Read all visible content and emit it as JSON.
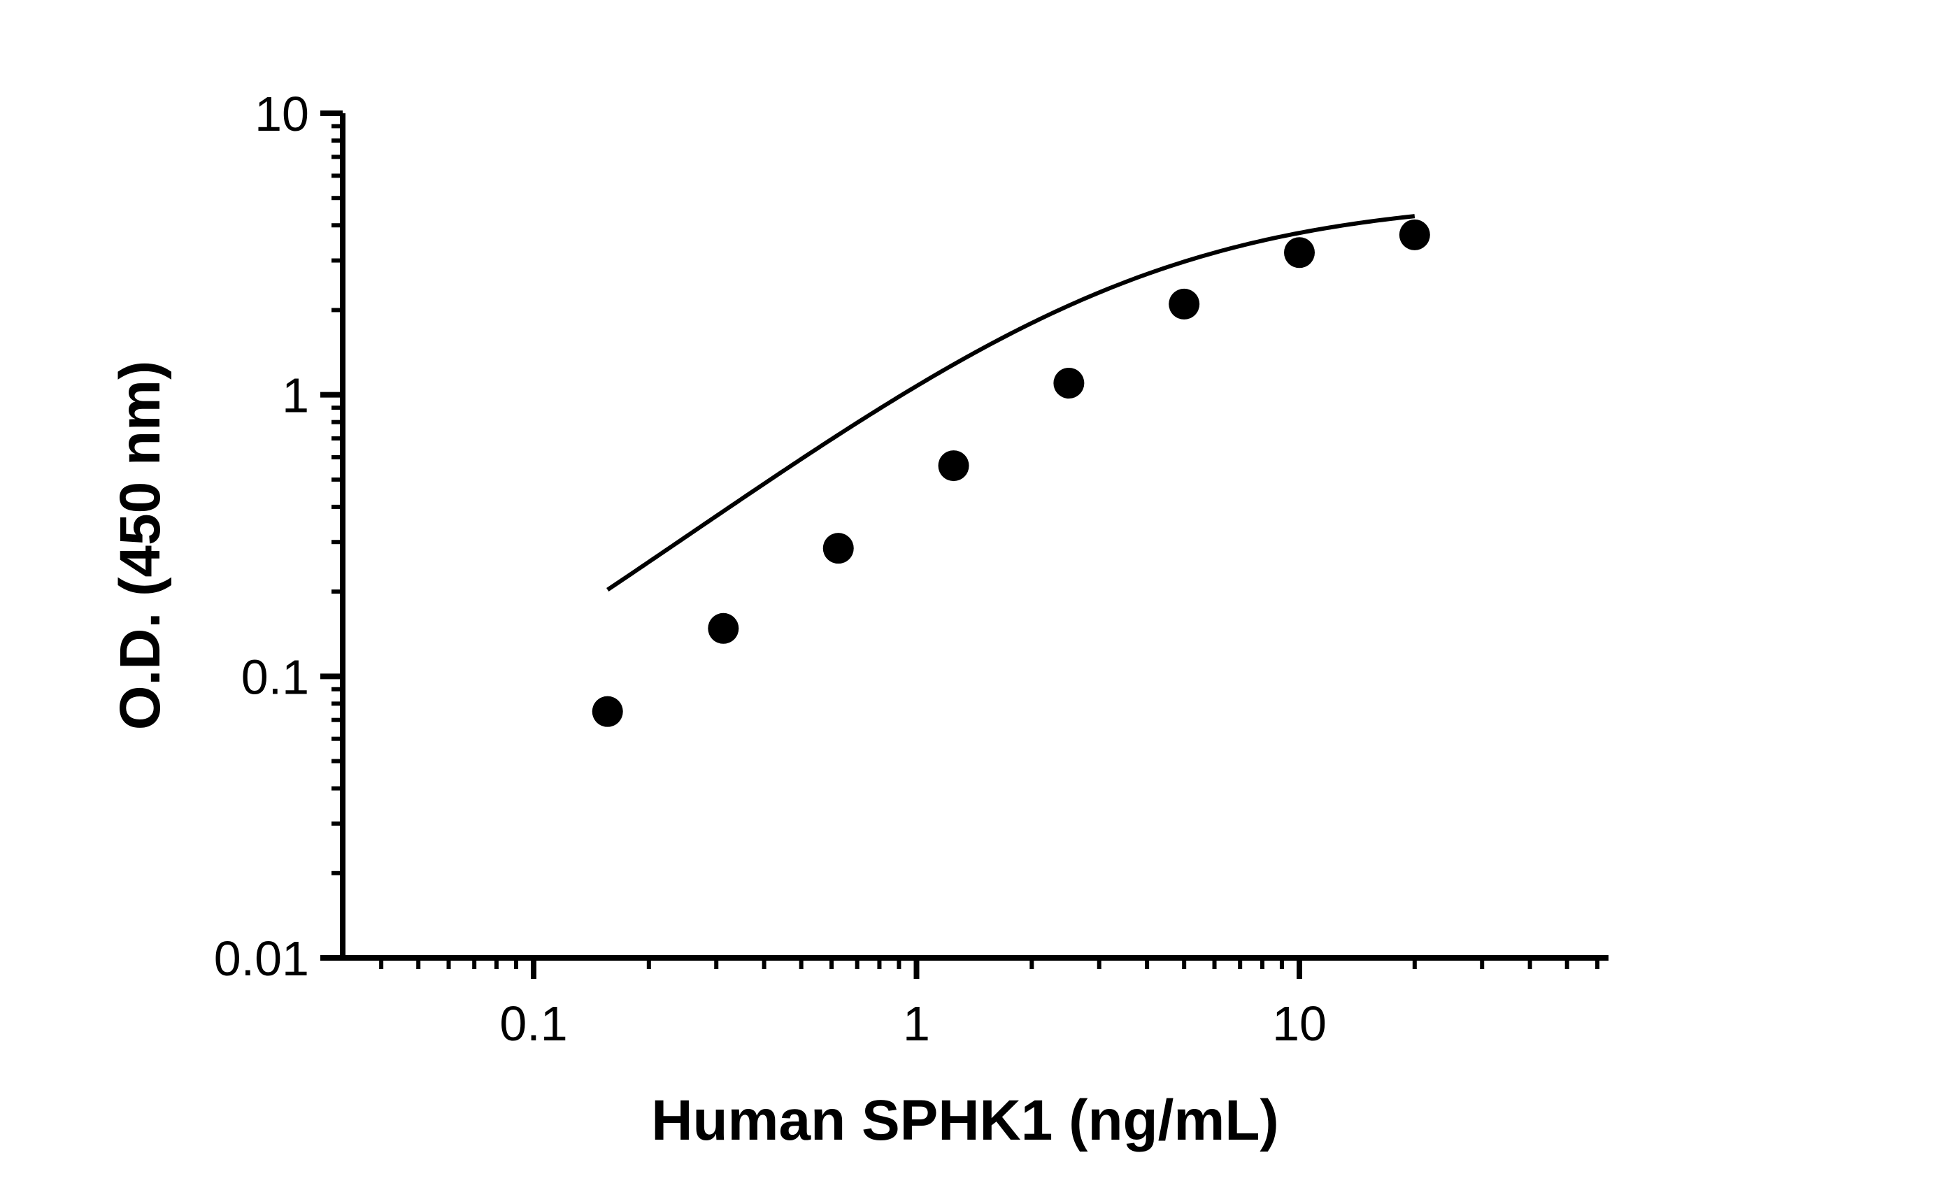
{
  "chart_data": {
    "type": "scatter",
    "xlabel": "Human SPHK1 (ng/mL)",
    "ylabel": "O.D. (450 nm)",
    "x_scale": "log",
    "y_scale": "log",
    "xlim": [
      0.03,
      60
    ],
    "ylim": [
      0.01,
      10
    ],
    "x_ticks": [
      {
        "value": 0.1,
        "label": "0.1"
      },
      {
        "value": 1,
        "label": "1"
      },
      {
        "value": 10,
        "label": "10"
      }
    ],
    "y_ticks": [
      {
        "value": 0.01,
        "label": "0.01"
      },
      {
        "value": 0.1,
        "label": "0.1"
      },
      {
        "value": 1,
        "label": "1"
      },
      {
        "value": 10,
        "label": "10"
      }
    ],
    "grid": false,
    "points": [
      {
        "x": 0.156,
        "y": 0.075
      },
      {
        "x": 0.313,
        "y": 0.148
      },
      {
        "x": 0.625,
        "y": 0.285
      },
      {
        "x": 1.25,
        "y": 0.56
      },
      {
        "x": 2.5,
        "y": 1.1
      },
      {
        "x": 5,
        "y": 2.1
      },
      {
        "x": 10,
        "y": 3.2
      },
      {
        "x": 20,
        "y": 3.7
      }
    ],
    "fit_curve": {
      "type": "4PL",
      "bottom": 0.02,
      "top": 5.0,
      "ec50": 3.5,
      "hill": 1.05
    },
    "colors": {
      "points": "#000000",
      "curve": "#000000",
      "axes": "#000000"
    }
  }
}
